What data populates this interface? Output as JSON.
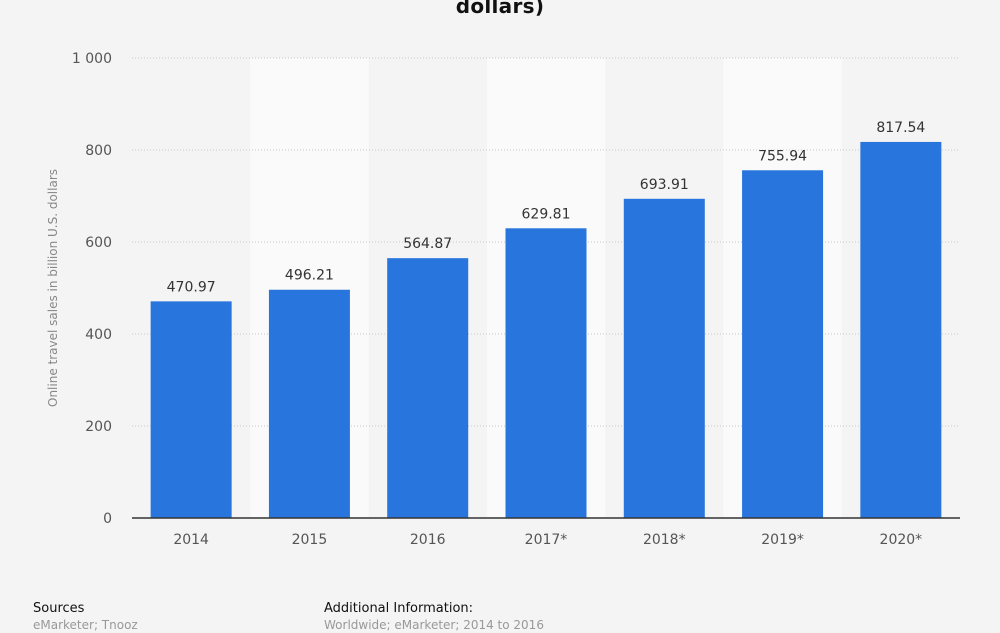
{
  "chart_data": {
    "type": "bar",
    "title": "dollars)",
    "ylabel": "Online travel sales in billion U.S. dollars",
    "xlabel": "",
    "categories": [
      "2014",
      "2015",
      "2016",
      "2017*",
      "2018*",
      "2019*",
      "2020*"
    ],
    "values": [
      470.97,
      496.21,
      564.87,
      629.81,
      693.91,
      755.94,
      817.54
    ],
    "value_labels": [
      "470.97",
      "496.21",
      "564.87",
      "629.81",
      "693.91",
      "755.94",
      "817.54"
    ],
    "ylim": [
      0,
      1000
    ],
    "yticks": [
      0,
      200,
      400,
      600,
      800,
      1000
    ],
    "ytick_labels": [
      "0",
      "200",
      "400",
      "600",
      "800",
      "1 000"
    ],
    "grid": true,
    "legend": "none",
    "colors": {
      "bar": "#2876dd",
      "background": "#f4f4f4",
      "alt_band": "#fafafa",
      "grid": "#c8c8c8",
      "axis": "#333333",
      "tick_text": "#555555",
      "label_text": "#333333"
    }
  },
  "footer": {
    "sources_heading": "Sources",
    "sources_text": "eMarketer; Tnooz",
    "info_heading": "Additional Information:",
    "info_text": "Worldwide; eMarketer; 2014 to 2016"
  }
}
